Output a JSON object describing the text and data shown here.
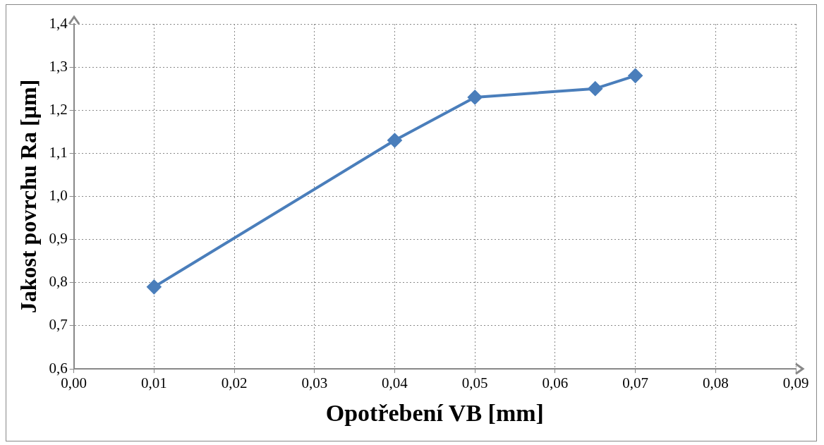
{
  "chart_data": {
    "type": "line",
    "xlabel": "Opotřebení VB [mm]",
    "ylabel": "Jakost povrchu Ra [µm]",
    "x": [
      0.01,
      0.04,
      0.05,
      0.065,
      0.07
    ],
    "series": [
      {
        "color": "#4a7ebb",
        "values": [
          0.79,
          1.13,
          1.23,
          1.25,
          1.28
        ]
      }
    ],
    "xlim": [
      0,
      0.09
    ],
    "xticks": [
      {
        "value": 0,
        "label": "0,00"
      },
      {
        "value": 0.01,
        "label": "0,01"
      },
      {
        "value": 0.02,
        "label": "0,02"
      },
      {
        "value": 0.03,
        "label": "0,03"
      },
      {
        "value": 0.04,
        "label": "0,04"
      },
      {
        "value": 0.05,
        "label": "0,05"
      },
      {
        "value": 0.06,
        "label": "0,06"
      },
      {
        "value": 0.07,
        "label": "0,07"
      },
      {
        "value": 0.08,
        "label": "0,08"
      },
      {
        "value": 0.09,
        "label": "0,09"
      }
    ],
    "ylim": [
      0.6,
      1.4
    ],
    "yticks": [
      {
        "value": 0.6,
        "label": "0,6"
      },
      {
        "value": 0.7,
        "label": "0,7"
      },
      {
        "value": 0.8,
        "label": "0,8"
      },
      {
        "value": 0.9,
        "label": "0,9"
      },
      {
        "value": 1.0,
        "label": "1,0"
      },
      {
        "value": 1.1,
        "label": "1,1"
      },
      {
        "value": 1.2,
        "label": "1,2"
      },
      {
        "value": 1.3,
        "label": "1,3"
      },
      {
        "value": 1.4,
        "label": "1,4"
      }
    ],
    "grid": true,
    "legend": false,
    "marker": "diamond",
    "line_style": "solid"
  }
}
